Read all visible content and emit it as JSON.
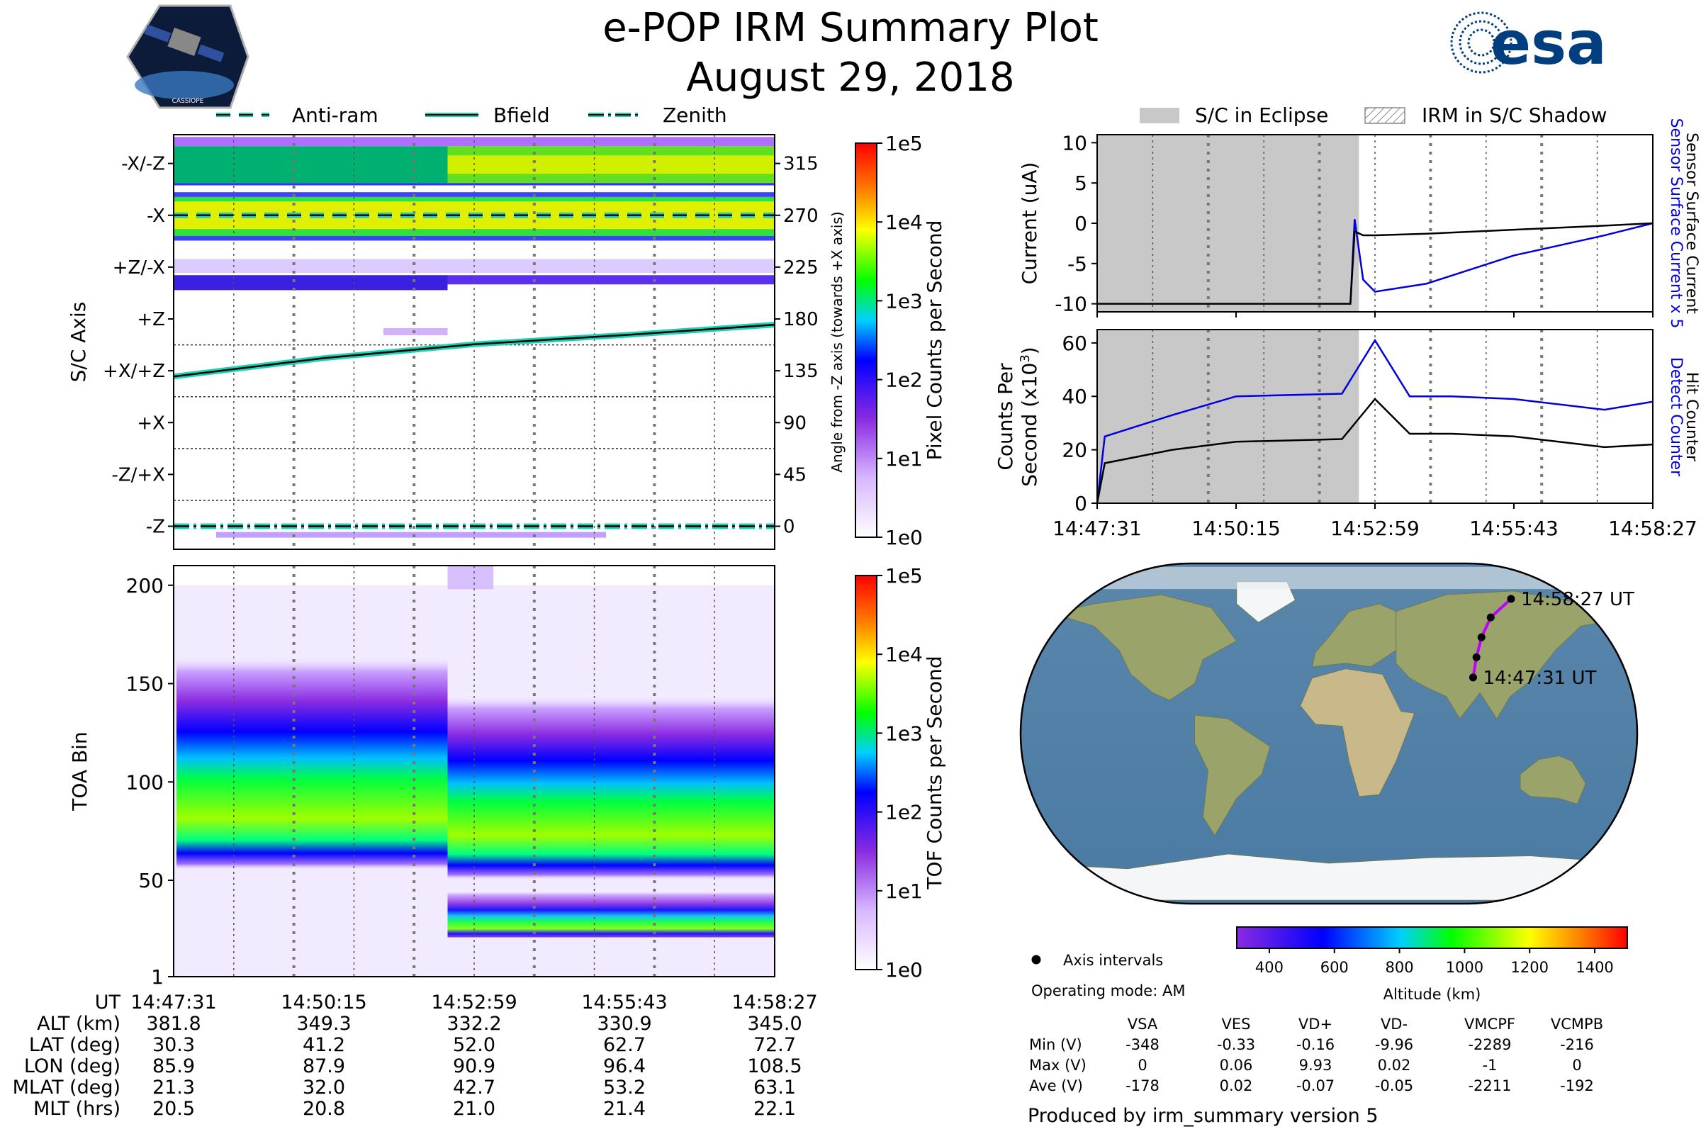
{
  "header": {
    "title": "e-POP IRM Summary Plot",
    "date": "August 29, 2018",
    "esa_logo_text": "esa",
    "cassiope_logo_text": "CASSIOPE"
  },
  "legends": {
    "left": [
      "Anti-ram",
      "Bfield",
      "Zenith"
    ],
    "right": [
      "S/C in Eclipse",
      "IRM in S/C Shadow"
    ]
  },
  "colors": {
    "teal": "#1fd1b4",
    "eclipse": "#c8c8c8",
    "blue_line": "#0000dd",
    "black_line": "#000000",
    "magenta": "#c000ff"
  },
  "chart_data": [
    {
      "type": "heatmap",
      "name": "sc-axis-angle",
      "ylabel": "S/C Axis",
      "ylabel_right": "Angle from -Z axis (towards +X axis)",
      "y_tick_labels": [
        "-X/-Z",
        "-X",
        "+Z/-X",
        "+Z",
        "+X/+Z",
        "+X",
        "-Z/+X",
        "-Z"
      ],
      "y_right_ticks": [
        315,
        270,
        225,
        180,
        135,
        90,
        45,
        0
      ],
      "ylim": [
        -20,
        340
      ],
      "x_ticks": [
        "14:47:31",
        "14:50:15",
        "14:52:59",
        "14:55:43",
        "14:58:27"
      ],
      "colorbar": {
        "label": "Pixel Counts per Second",
        "ticks": [
          "1e5",
          "1e4",
          "1e3",
          "1e2",
          "1e1",
          "1e0"
        ],
        "scale": "log"
      },
      "lines": [
        {
          "name": "Anti-ram",
          "style": "dashed",
          "values": [
            270,
            270,
            270,
            270,
            270
          ]
        },
        {
          "name": "Bfield",
          "style": "solid",
          "values": [
            130,
            146,
            158,
            166,
            175
          ]
        },
        {
          "name": "Zenith",
          "style": "dashdot",
          "values": [
            0,
            0,
            0,
            0,
            0
          ]
        }
      ]
    },
    {
      "type": "heatmap",
      "name": "toa-spectrogram",
      "ylabel": "TOA Bin",
      "y_ticks": [
        1,
        50,
        100,
        150,
        200
      ],
      "ylim": [
        1,
        210
      ],
      "x_ticks": [
        "14:47:31",
        "14:50:15",
        "14:52:59",
        "14:55:43",
        "14:58:27"
      ],
      "colorbar": {
        "label": "TOF Counts per Second",
        "ticks": [
          "1e5",
          "1e4",
          "1e3",
          "1e2",
          "1e1",
          "1e0"
        ],
        "scale": "log"
      },
      "bands": [
        {
          "segment": "14:47:31-14:52:30",
          "core": [
            60,
            105
          ],
          "halo": [
            55,
            150
          ]
        },
        {
          "segment": "14:52:30-14:58:27",
          "core": [
            55,
            100
          ],
          "halo": [
            50,
            130
          ],
          "lower_core": [
            25,
            45
          ]
        }
      ]
    },
    {
      "type": "line",
      "name": "sensor-current",
      "ylabel": "Current (uA)",
      "ylabel_right_blue": "Sensor Surface Current x 5",
      "ylabel_right_black": "Sensor Surface Current",
      "y_ticks": [
        10,
        5,
        0,
        -5,
        -10
      ],
      "ylim": [
        -11,
        11
      ],
      "x": [
        "14:47:31",
        "14:50:15",
        "14:52:30",
        "14:52:35",
        "14:52:45",
        "14:52:59",
        "14:54:00",
        "14:55:43",
        "14:57:30",
        "14:58:27"
      ],
      "series": [
        {
          "name": "Sensor Surface Current x 5",
          "values": [
            null,
            null,
            -10,
            0.5,
            -7,
            -8.5,
            -7.5,
            -4,
            -1.5,
            0
          ]
        },
        {
          "name": "Sensor Surface Current",
          "values": [
            -10,
            -10,
            -10,
            -1,
            -1.5,
            -1.5,
            -1.3,
            -0.8,
            -0.3,
            0
          ]
        }
      ]
    },
    {
      "type": "line",
      "name": "counts-per-second",
      "ylabel": "Counts Per Second (x10",
      "ylabel_sup": "3",
      "ylabel_right_blue": "Detect Counter",
      "ylabel_right_black": "Hit Counter",
      "y_ticks": [
        60,
        40,
        20,
        0
      ],
      "ylim": [
        0,
        65
      ],
      "x_ticks": [
        "14:47:31",
        "14:50:15",
        "14:52:59",
        "14:55:43",
        "14:58:27"
      ],
      "x": [
        "14:47:31",
        "14:47:40",
        "14:49:00",
        "14:50:15",
        "14:52:20",
        "14:52:59",
        "14:53:40",
        "14:54:30",
        "14:55:43",
        "14:57:30",
        "14:58:27"
      ],
      "series": [
        {
          "name": "Detect Counter",
          "values": [
            0,
            25,
            33,
            40,
            41,
            61,
            40,
            40,
            39,
            35,
            38
          ]
        },
        {
          "name": "Hit Counter",
          "values": [
            0,
            15,
            20,
            23,
            24,
            39,
            26,
            26,
            25,
            21,
            22
          ]
        }
      ]
    },
    {
      "type": "scatter",
      "name": "orbit-map",
      "labels": [
        "14:58:27 UT",
        "14:47:31 UT"
      ],
      "colorbar": {
        "label": "Altitude (km)",
        "ticks": [
          400,
          600,
          800,
          1000,
          1200,
          1400
        ],
        "range": [
          300,
          1500
        ]
      },
      "legend": "Axis intervals",
      "lat": [
        30.3,
        41.2,
        52.0,
        62.7,
        72.7
      ],
      "lon": [
        85.9,
        87.9,
        90.9,
        96.4,
        108.5
      ]
    }
  ],
  "ephemeris": {
    "rows": [
      {
        "label": "UT",
        "values": [
          "14:47:31",
          "14:50:15",
          "14:52:59",
          "14:55:43",
          "14:58:27"
        ]
      },
      {
        "label": "ALT (km)",
        "values": [
          "381.8",
          "349.3",
          "332.2",
          "330.9",
          "345.0"
        ]
      },
      {
        "label": "LAT (deg)",
        "values": [
          "30.3",
          "41.2",
          "52.0",
          "62.7",
          "72.7"
        ]
      },
      {
        "label": "LON (deg)",
        "values": [
          "85.9",
          "87.9",
          "90.9",
          "96.4",
          "108.5"
        ]
      },
      {
        "label": "MLAT (deg)",
        "values": [
          "21.3",
          "32.0",
          "42.7",
          "53.2",
          "63.1"
        ]
      },
      {
        "label": "MLT (hrs)",
        "values": [
          "20.5",
          "20.8",
          "21.0",
          "21.4",
          "22.1"
        ]
      }
    ]
  },
  "operating_mode": "Operating mode: AM",
  "voltages": {
    "headers": [
      "VSA",
      "VES",
      "VD+",
      "VD-",
      "VMCPF",
      "VCMPB"
    ],
    "rows": [
      {
        "label": "Min (V)",
        "values": [
          "-348",
          "-0.33",
          "-0.16",
          "-9.96",
          "-2289",
          "-216"
        ]
      },
      {
        "label": "Max (V)",
        "values": [
          "0",
          "0.06",
          "9.93",
          "0.02",
          "-1",
          "0"
        ]
      },
      {
        "label": "Ave (V)",
        "values": [
          "-178",
          "0.02",
          "-0.07",
          "-0.05",
          "-2211",
          "-192"
        ]
      }
    ]
  },
  "footer": "Produced by irm_summary version 5"
}
